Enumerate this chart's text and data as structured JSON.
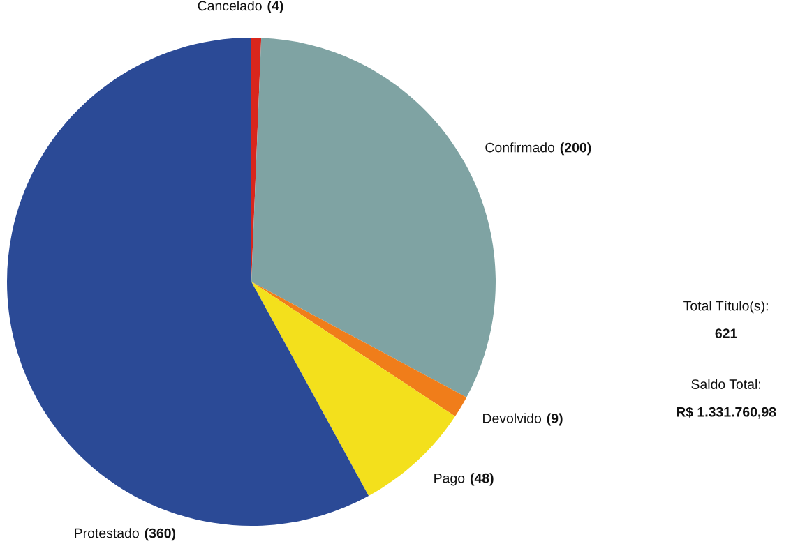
{
  "chart_data": {
    "type": "pie",
    "categories": [
      "Cancelado",
      "Confirmado",
      "Devolvido",
      "Pago",
      "Protestado"
    ],
    "values": [
      4,
      200,
      9,
      48,
      360
    ],
    "colors": [
      "#d9261c",
      "#7fa3a3",
      "#f07d1a",
      "#f3e01c",
      "#2b4a96"
    ],
    "value_labels": [
      "(4)",
      "(200)",
      "(9)",
      "(48)",
      "(360)"
    ],
    "annotations": [
      "Total Título(s):",
      "621",
      "Saldo Total:",
      "R$ 1.331.760,98"
    ]
  }
}
